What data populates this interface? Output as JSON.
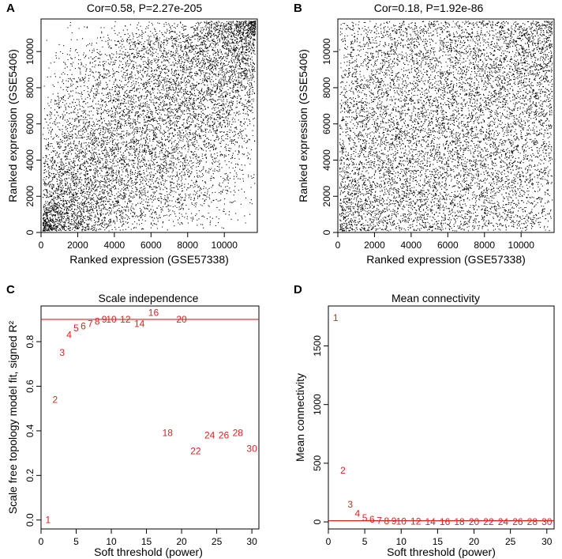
{
  "chart_data": [
    {
      "id": "A",
      "type": "scatter",
      "panel_label": "A",
      "title": "Cor=0.58, P=2.27e-205",
      "xlabel": "Ranked expression (GSE57338)",
      "ylabel": "Ranked expression (GSE5406)",
      "xlim": [
        0,
        11800
      ],
      "ylim": [
        0,
        11800
      ],
      "xticks": [
        0,
        2000,
        4000,
        6000,
        8000,
        10000
      ],
      "yticks": [
        0,
        2000,
        4000,
        6000,
        8000,
        10000
      ],
      "n_points": 9000,
      "correlation": 0.58,
      "point_color": "#000000"
    },
    {
      "id": "B",
      "type": "scatter",
      "panel_label": "B",
      "title": "Cor=0.18,  P=1.92e-86",
      "xlabel": "Ranked expression (GSE57338)",
      "ylabel": "Ranked expression (GSE5406)",
      "xlim": [
        0,
        11800
      ],
      "ylim": [
        0,
        11800
      ],
      "xticks": [
        0,
        2000,
        4000,
        6000,
        8000,
        10000
      ],
      "yticks": [
        0,
        2000,
        4000,
        6000,
        8000,
        10000
      ],
      "n_points": 9000,
      "correlation": 0.18,
      "point_color": "#000000"
    },
    {
      "id": "C",
      "type": "scatter",
      "panel_label": "C",
      "title": "Scale independence",
      "xlabel": "Soft threshold (power)",
      "ylabel": "Scale free topology model fit, signed R²",
      "xlim": [
        0,
        31
      ],
      "ylim": [
        -0.04,
        0.96
      ],
      "xticks": [
        0,
        5,
        10,
        15,
        20,
        25,
        30
      ],
      "yticks": [
        0.0,
        0.2,
        0.4,
        0.6,
        0.8
      ],
      "ytick_labels": [
        "0.0",
        "0.2",
        "0.4",
        "0.6",
        "0.8"
      ],
      "hline": 0.9,
      "label_color": "#e0201f",
      "x": [
        1,
        2,
        3,
        4,
        5,
        6,
        7,
        8,
        9,
        10,
        12,
        14,
        16,
        18,
        20,
        22,
        24,
        26,
        28,
        30
      ],
      "y": [
        0.0,
        0.54,
        0.75,
        0.83,
        0.86,
        0.87,
        0.88,
        0.89,
        0.9,
        0.9,
        0.9,
        0.88,
        0.93,
        0.39,
        0.9,
        0.31,
        0.38,
        0.38,
        0.39,
        0.32
      ],
      "labels": [
        "1",
        "2",
        "3",
        "4",
        "5",
        "6",
        "7",
        "8",
        "9",
        "10",
        "12",
        "14",
        "16",
        "18",
        "20",
        "22",
        "24",
        "26",
        "28",
        "30"
      ]
    },
    {
      "id": "D",
      "type": "scatter",
      "panel_label": "D",
      "title": "Mean connectivity",
      "xlabel": "Soft threshold (power)",
      "ylabel": "Mean connectivity",
      "xlim": [
        0,
        31
      ],
      "ylim": [
        -60,
        1840
      ],
      "xticks": [
        0,
        5,
        10,
        15,
        20,
        25,
        30
      ],
      "yticks": [
        0,
        500,
        1000,
        1500
      ],
      "ytick_labels": [
        "0",
        "500",
        "1000",
        "1500"
      ],
      "hline": 10,
      "label_color": "#e0201f",
      "x": [
        1,
        2,
        3,
        4,
        5,
        6,
        7,
        8,
        9,
        10,
        12,
        14,
        16,
        18,
        20,
        22,
        24,
        26,
        28,
        30
      ],
      "y": [
        1740,
        440,
        150,
        70,
        35,
        20,
        12,
        8,
        6,
        5,
        3,
        2,
        2,
        1,
        1,
        1,
        1,
        1,
        1,
        1
      ],
      "labels": [
        "1",
        "2",
        "3",
        "4",
        "5",
        "6",
        "7",
        "8",
        "9",
        "10",
        "12",
        "14",
        "16",
        "18",
        "20",
        "22",
        "24",
        "26",
        "28",
        "30"
      ]
    }
  ]
}
